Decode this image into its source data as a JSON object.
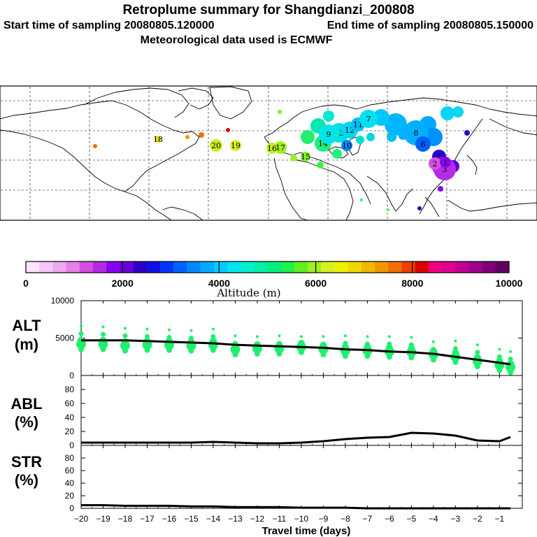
{
  "header": {
    "title": "Retroplume summary for Shangdianzi_200808",
    "sampling_start": "Start time of sampling 20080805.120000",
    "sampling_end": "End time of sampling 20080805.150000",
    "met_data": "Meteorological data used is ECMWF"
  },
  "colorbar": {
    "label": "Altitude (m)",
    "ticks": [
      "0",
      "2000",
      "4000",
      "6000",
      "8000",
      "10000"
    ],
    "colors": [
      "#fbe3fb",
      "#f6c6f6",
      "#f0a8f0",
      "#e880e8",
      "#d44fe0",
      "#b42be6",
      "#8a00f0",
      "#6a00d8",
      "#2c00c8",
      "#1010e6",
      "#0036ff",
      "#0060ff",
      "#0088ff",
      "#00aaff",
      "#00ccff",
      "#00e6f0",
      "#00f0d0",
      "#00f0a8",
      "#00f080",
      "#20f050",
      "#60f020",
      "#a0f020",
      "#d8f020",
      "#f0f000",
      "#f0d800",
      "#f0b800",
      "#f09800",
      "#f07000",
      "#f04000",
      "#e00000",
      "#f00080",
      "#e00090",
      "#c00090",
      "#a00090",
      "#800078",
      "#600060"
    ]
  },
  "map": {
    "labels": [
      {
        "text": "20",
        "color": "#c8f01c"
      },
      {
        "text": "19",
        "color": "#d8f020"
      },
      {
        "text": "18",
        "color": "#e8e000"
      },
      {
        "text": "17",
        "color": "#a0f020"
      },
      {
        "text": "16",
        "color": "#c0f020"
      },
      {
        "text": "15",
        "color": "#80f030"
      },
      {
        "text": "14",
        "color": "#20f080"
      },
      {
        "text": "13",
        "color": "#00e0e0"
      },
      {
        "text": "12",
        "color": "#00d8f0"
      },
      {
        "text": "11",
        "color": "#00c0ff"
      },
      {
        "text": "10",
        "color": "#0088ff"
      },
      {
        "text": "9",
        "color": "#00e6e6"
      },
      {
        "text": "8",
        "color": "#00b0ff"
      },
      {
        "text": "7",
        "color": "#00e0f0"
      },
      {
        "text": "6",
        "color": "#0060ff"
      },
      {
        "text": "5",
        "color": "#2c00c8"
      },
      {
        "text": "4",
        "color": "#8a00f0"
      },
      {
        "text": "3",
        "color": "#b42be6"
      },
      {
        "text": "2",
        "color": "#d44fe0"
      },
      {
        "text": "1",
        "color": "#8a00f0"
      }
    ]
  },
  "chart_data": [
    {
      "type": "line",
      "title": "ALT",
      "ylabel": "ALT (m)",
      "xlabel": "Travel time (days)",
      "ylim": [
        0,
        10000
      ],
      "yticks": [
        0,
        5000,
        10000
      ],
      "x": [
        -20,
        -19,
        -18,
        -17,
        -16,
        -15,
        -14,
        -13,
        -12,
        -11,
        -10,
        -9,
        -8,
        -7,
        -6,
        -5,
        -4,
        -3,
        -2,
        -1,
        -0.5
      ],
      "series": [
        {
          "name": "mean altitude",
          "values": [
            4700,
            4700,
            4700,
            4600,
            4500,
            4400,
            4300,
            4100,
            4000,
            3900,
            3800,
            3700,
            3500,
            3400,
            3200,
            3100,
            2900,
            2500,
            2100,
            1700,
            1500
          ]
        },
        {
          "name": "cluster centres",
          "values": [
            4200,
            4200,
            4000,
            4100,
            4100,
            4000,
            4100,
            3500,
            3600,
            3600,
            3800,
            3500,
            3300,
            3300,
            3200,
            3100,
            2800,
            2500,
            1900,
            1400,
            1100
          ]
        },
        {
          "name": "cluster upper",
          "values": [
            5600,
            5500,
            5300,
            5200,
            5100,
            5000,
            5200,
            4300,
            4200,
            4300,
            4200,
            4200,
            4300,
            4200,
            4200,
            4100,
            3500,
            3600,
            3100,
            2500,
            2200
          ]
        }
      ]
    },
    {
      "type": "line",
      "title": "ABL",
      "ylabel": "ABL (%)",
      "xlabel": "Travel time (days)",
      "ylim": [
        0,
        100
      ],
      "yticks": [
        0,
        20,
        40,
        60,
        80
      ],
      "x": [
        -20,
        -19,
        -18,
        -17,
        -16,
        -15,
        -14,
        -13,
        -12,
        -11,
        -10,
        -9,
        -8,
        -7,
        -6,
        -5,
        -4,
        -3,
        -2,
        -1,
        -0.5
      ],
      "series": [
        {
          "name": "ABL fraction",
          "values": [
            4,
            4,
            4,
            4,
            4,
            4,
            5,
            4,
            3,
            3,
            4,
            6,
            9,
            11,
            12,
            18,
            17,
            14,
            7,
            6,
            12
          ]
        }
      ]
    },
    {
      "type": "line",
      "title": "STR",
      "ylabel": "STR (%)",
      "xlabel": "Travel time (days)",
      "ylim": [
        0,
        100
      ],
      "yticks": [
        0,
        20,
        40,
        60,
        80
      ],
      "x": [
        -20,
        -19,
        -18,
        -17,
        -16,
        -15,
        -14,
        -13,
        -12,
        -11,
        -10,
        -9,
        -8,
        -7,
        -6,
        -5,
        -4,
        -3,
        -2,
        -1,
        -0.5
      ],
      "series": [
        {
          "name": "stratosphere fraction",
          "values": [
            5,
            5,
            4,
            4,
            4,
            3,
            3,
            2,
            2,
            2,
            1,
            1,
            1,
            0,
            0,
            0,
            0,
            0,
            0,
            0,
            0
          ]
        }
      ]
    }
  ],
  "axes": {
    "panel_labels": {
      "alt": "ALT",
      "alt_unit": "(m)",
      "abl": "ABL",
      "abl_unit": "(%)",
      "str": "STR",
      "str_unit": "(%)"
    },
    "xticks": [
      "−20",
      "−19",
      "−18",
      "−17",
      "−16",
      "−15",
      "−14",
      "−13",
      "−12",
      "−11",
      "−10",
      "−9",
      "−8",
      "−7",
      "−6",
      "−5",
      "−4",
      "−3",
      "−2",
      "−1"
    ],
    "xlabel": "Travel time (days)"
  }
}
